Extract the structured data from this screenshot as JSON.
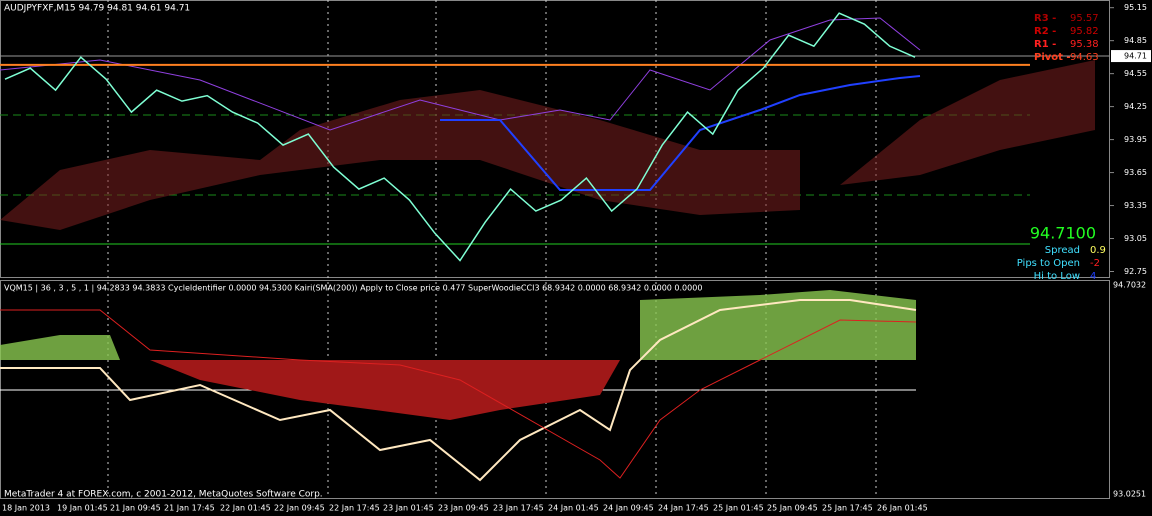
{
  "header": {
    "title": "AUDJPYFXF,M15  94.79 94.81 94.61 94.71"
  },
  "chart_data": {
    "type": "line",
    "values": [
      94.5,
      94.6,
      94.4,
      94.7,
      94.5,
      94.2,
      94.4,
      94.3,
      94.35,
      94.2,
      94.1,
      93.9,
      94.0,
      93.7,
      93.5,
      93.6,
      93.4,
      93.1,
      92.85,
      93.2,
      93.5,
      93.3,
      93.4,
      93.6,
      93.3,
      93.5,
      93.9,
      94.2,
      94.0,
      94.4,
      94.6,
      94.9,
      94.8,
      95.1,
      95.0,
      94.8,
      94.7
    ],
    "color": "#7fffd4",
    "ylim": [
      92.7,
      95.22
    ],
    "yticks": [
      95.15,
      94.85,
      94.55,
      94.25,
      93.95,
      93.65,
      93.35,
      93.05,
      92.75
    ],
    "current_price": 94.71,
    "time_labels": [
      "18 Jan 2013",
      "19 Jan 01:45",
      "21 Jan 09:45",
      "21 Jan 17:45",
      "22 Jan 01:45",
      "22 Jan 09:45",
      "22 Jan 17:45",
      "23 Jan 01:45",
      "23 Jan 09:45",
      "23 Jan 17:45",
      "24 Jan 01:45",
      "24 Jan 09:45",
      "24 Jan 17:45",
      "25 Jan 01:45",
      "25 Jan 09:45",
      "25 Jan 17:45",
      "26 Jan 01:45"
    ],
    "pivots": [
      {
        "name": "R3 -",
        "value": 95.57,
        "color": "#b00000"
      },
      {
        "name": "R2 -",
        "value": 95.82,
        "color": "#cc0000"
      },
      {
        "name": "R1 -",
        "value": 95.38,
        "color": "#ff2020"
      },
      {
        "name": "Pivot -",
        "value": 94.63,
        "color": "#ff4020"
      }
    ]
  },
  "info": {
    "price": "94.7100",
    "rows": [
      {
        "label": "Spread",
        "value": "0.9",
        "color": "#ffff60"
      },
      {
        "label": "Pips to Open",
        "value": "-2",
        "color": "#ff2020"
      },
      {
        "label": "Hi to Low",
        "value": "4",
        "color": "#2040ff"
      }
    ]
  },
  "indicator": {
    "header": "VQM15 | 36 , 3 , 5 , 1 | 94.2833 94.3833  CycleIdentifier 0.0000 94.5300  Kairi(SMA(200)) Apply to Close price 0.477  SuperWoodieCCI3 68.9342 0.0000 68.9342 0.0000 0.0000",
    "top_label": "94.7032",
    "bottom_label": "93.0251"
  },
  "footer": "MetaTrader 4 at FOREX.com, c 2001-2012, MetaQuotes Software Corp."
}
